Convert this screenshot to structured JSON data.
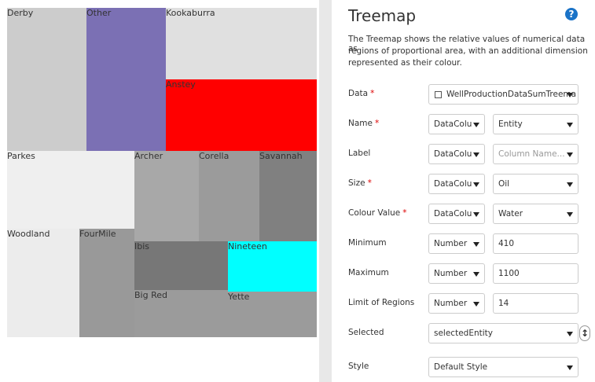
{
  "treemap": {
    "regions": [
      {
        "label": "Derby",
        "color": "#cccccc"
      },
      {
        "label": "Other",
        "color": "#7b70b4"
      },
      {
        "label": "Kookaburra",
        "color": "#e0e0e0"
      },
      {
        "label": "Anstey",
        "color": "#ff0000"
      },
      {
        "label": "Parkes",
        "color": "#efefef"
      },
      {
        "label": "Archer",
        "color": "#a8a8a8"
      },
      {
        "label": "Corella",
        "color": "#9b9b9b"
      },
      {
        "label": "Savannah",
        "color": "#808080"
      },
      {
        "label": "Woodland",
        "color": "#ececec"
      },
      {
        "label": "FourMile",
        "color": "#999999"
      },
      {
        "label": "Ibis",
        "color": "#777777"
      },
      {
        "label": "Nineteen",
        "color": "#00ffff"
      },
      {
        "label": "Big Red",
        "color": "#9b9b9b"
      },
      {
        "label": "Yette",
        "color": "#9b9b9b"
      }
    ]
  },
  "panel": {
    "title": "Treemap",
    "description": [
      "The Treemap shows the relative values of numerical data as",
      "regions of proportional area, with an additional dimension",
      "represented as their colour."
    ],
    "fields": [
      {
        "label": "Data",
        "mark": "*",
        "controls": [
          {
            "text": "WellProductionDataSumTreema",
            "kind": "wide-select"
          }
        ]
      },
      {
        "label": "Name",
        "mark": "*",
        "controls": [
          {
            "text": "DataColu",
            "kind": "small-select"
          },
          {
            "text": "Entity",
            "kind": "select"
          }
        ]
      },
      {
        "label": "Label",
        "controls": [
          {
            "text": "DataColu",
            "kind": "small-select"
          },
          {
            "text": "Column Name...",
            "kind": "placeholder-select"
          }
        ]
      },
      {
        "label": "Size",
        "mark": "*",
        "controls": [
          {
            "text": "DataColu",
            "kind": "small-select"
          },
          {
            "text": "Oil",
            "kind": "select"
          }
        ]
      },
      {
        "label": "Colour Value",
        "mark": "*",
        "controls": [
          {
            "text": "DataColu",
            "kind": "small-select"
          },
          {
            "text": "Water",
            "kind": "select"
          }
        ]
      },
      {
        "label": "Minimum",
        "controls": [
          {
            "text": "Number",
            "kind": "small-select"
          },
          {
            "text": "410",
            "kind": "input"
          }
        ]
      },
      {
        "label": "Maximum",
        "controls": [
          {
            "text": "Number",
            "kind": "small-select"
          },
          {
            "text": "1100",
            "kind": "input"
          }
        ]
      },
      {
        "label": "Limit of Regions",
        "controls": [
          {
            "text": "Number",
            "kind": "small-select"
          },
          {
            "text": "14",
            "kind": "input"
          }
        ]
      },
      {
        "label": "Selected",
        "controls": [
          {
            "text": "selectedEntity",
            "kind": "wide-select"
          }
        ]
      },
      {
        "label": "Style",
        "controls": [
          {
            "text": "Default Style",
            "kind": "wide-select"
          }
        ]
      }
    ]
  }
}
